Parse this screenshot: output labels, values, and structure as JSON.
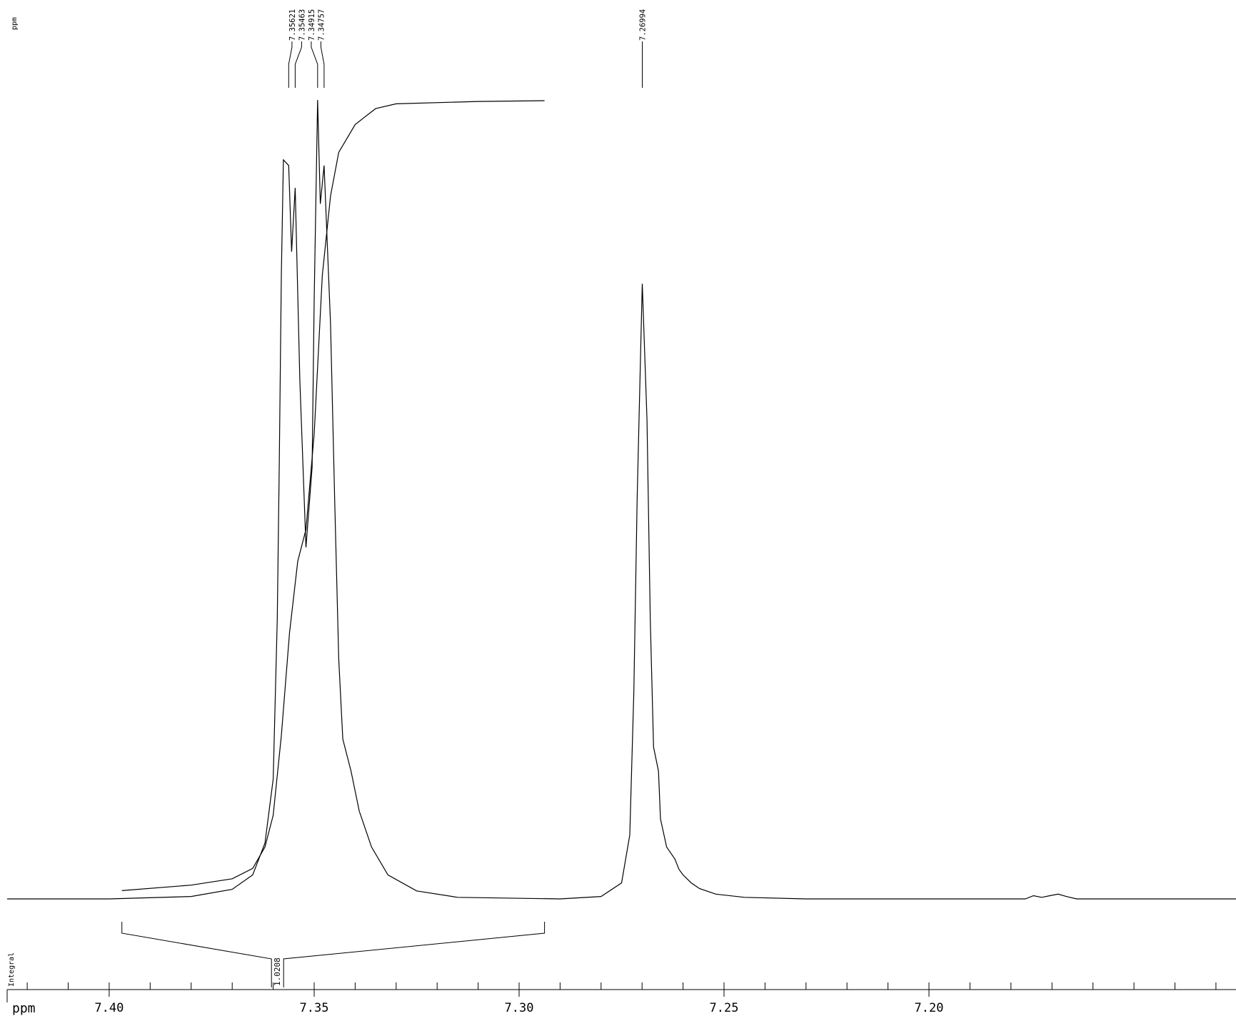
{
  "chart_data": {
    "type": "line",
    "title": "",
    "xlabel": "ppm",
    "ylabel": "ppm",
    "integral_row_label": "Integral",
    "x_reversed": true,
    "xlim": [
      7.4249,
      7.1251
    ],
    "x_ticks": [
      7.4,
      7.35,
      7.3,
      7.25,
      7.2
    ],
    "x_tick_labels": [
      "7.40",
      "7.35",
      "7.30",
      "7.25",
      "7.20"
    ],
    "minor_tick_step": 0.01,
    "grid": false,
    "series": [
      {
        "points": [
          [
            7.4249,
            0.0
          ],
          [
            7.4,
            0.0
          ],
          [
            7.38,
            0.003
          ],
          [
            7.37,
            0.012
          ],
          [
            7.365,
            0.03
          ],
          [
            7.362,
            0.07
          ],
          [
            7.36,
            0.15
          ],
          [
            7.359,
            0.35
          ],
          [
            7.3585,
            0.55
          ],
          [
            7.358,
            0.78
          ],
          [
            7.3575,
            0.925
          ],
          [
            7.35621,
            0.918
          ],
          [
            7.3555,
            0.81
          ],
          [
            7.35463,
            0.89
          ],
          [
            7.3535,
            0.65
          ],
          [
            7.352,
            0.44
          ],
          [
            7.3505,
            0.54
          ],
          [
            7.35,
            0.75
          ],
          [
            7.34915,
            1.0
          ],
          [
            7.3485,
            0.87
          ],
          [
            7.34757,
            0.918
          ],
          [
            7.346,
            0.72
          ],
          [
            7.345,
            0.5
          ],
          [
            7.344,
            0.3
          ],
          [
            7.343,
            0.2
          ],
          [
            7.341,
            0.16
          ],
          [
            7.339,
            0.11
          ],
          [
            7.336,
            0.065
          ],
          [
            7.332,
            0.03
          ],
          [
            7.325,
            0.01
          ],
          [
            7.315,
            0.002
          ],
          [
            7.29,
            0.0
          ],
          [
            7.28,
            0.003
          ],
          [
            7.275,
            0.02
          ],
          [
            7.273,
            0.08
          ],
          [
            7.272,
            0.26
          ],
          [
            7.2712,
            0.5
          ],
          [
            7.27,
            0.76
          ],
          [
            7.26994,
            0.77
          ],
          [
            7.2688,
            0.6
          ],
          [
            7.268,
            0.35
          ],
          [
            7.2672,
            0.19
          ],
          [
            7.266,
            0.16
          ],
          [
            7.2655,
            0.1
          ],
          [
            7.264,
            0.065
          ],
          [
            7.262,
            0.05
          ],
          [
            7.261,
            0.037
          ],
          [
            7.26,
            0.03
          ],
          [
            7.258,
            0.02
          ],
          [
            7.256,
            0.013
          ],
          [
            7.252,
            0.006
          ],
          [
            7.245,
            0.002
          ],
          [
            7.23,
            0.0
          ],
          [
            7.2,
            0.0
          ],
          [
            7.1765,
            0.0
          ],
          [
            7.1745,
            0.004
          ],
          [
            7.1725,
            0.002
          ],
          [
            7.1705,
            0.004
          ],
          [
            7.1685,
            0.006
          ],
          [
            7.1665,
            0.003
          ],
          [
            7.164,
            0.0
          ],
          [
            7.1251,
            0.0
          ]
        ]
      }
    ],
    "integral_curve": [
      [
        7.3969,
        0.005
      ],
      [
        7.38,
        0.012
      ],
      [
        7.37,
        0.02
      ],
      [
        7.365,
        0.033
      ],
      [
        7.362,
        0.06
      ],
      [
        7.36,
        0.1
      ],
      [
        7.358,
        0.2
      ],
      [
        7.356,
        0.33
      ],
      [
        7.354,
        0.42
      ],
      [
        7.352,
        0.46
      ],
      [
        7.35,
        0.58
      ],
      [
        7.348,
        0.78
      ],
      [
        7.346,
        0.88
      ],
      [
        7.344,
        0.935
      ],
      [
        7.34,
        0.97
      ],
      [
        7.335,
        0.99
      ],
      [
        7.33,
        0.996
      ],
      [
        7.31,
        0.999
      ],
      [
        7.2938,
        1.0
      ]
    ],
    "peak_labels": [
      "7.35621",
      "7.35463",
      "7.34915",
      "7.34757",
      "7.26994"
    ],
    "peak_positions": [
      7.35621,
      7.35463,
      7.34915,
      7.34757,
      7.26994
    ],
    "integrals": [
      {
        "from": 7.3969,
        "to": 7.2938,
        "value_label": "1.0208",
        "value": 1.0208
      }
    ]
  }
}
